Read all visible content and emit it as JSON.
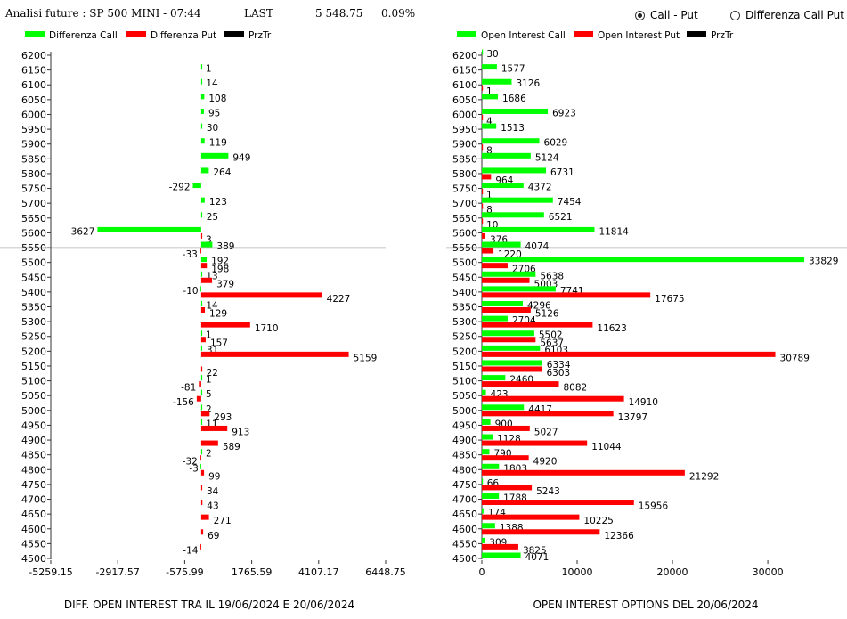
{
  "header": {
    "title": "Analisi future : SP 500 MINI - 07:44",
    "last_label": "LAST",
    "last_value": "5 548.75",
    "pct_value": "0.09%",
    "radio_options": [
      {
        "label": "Call - Put",
        "selected": true
      },
      {
        "label": "Differenza Call Put",
        "selected": false
      }
    ]
  },
  "colors": {
    "call": "#00ff00",
    "put": "#ff0000",
    "price": "#000000"
  },
  "chart_data": [
    {
      "type": "bar",
      "orientation": "horizontal",
      "title": "",
      "caption": "DIFF. OPEN INTEREST TRA IL 19/06/2024 E 20/06/2024",
      "legend": [
        "Differenza Call",
        "Differenza Put",
        "PrzTr"
      ],
      "legend_position": "top",
      "categories": [
        6200,
        6150,
        6100,
        6050,
        6000,
        5950,
        5900,
        5850,
        5800,
        5750,
        5700,
        5650,
        5600,
        5550,
        5500,
        5450,
        5400,
        5350,
        5300,
        5250,
        5200,
        5150,
        5100,
        5050,
        5000,
        4950,
        4900,
        4850,
        4800,
        4750,
        4700,
        4650,
        4600,
        4550,
        4500
      ],
      "series": [
        {
          "name": "Differenza Call",
          "values": [
            null,
            1,
            14,
            108,
            95,
            30,
            119,
            949,
            264,
            -292,
            123,
            25,
            -3627,
            389,
            192,
            13,
            -10,
            14,
            null,
            1,
            31,
            null,
            1,
            5,
            2,
            11,
            null,
            2,
            -3,
            null,
            null,
            null,
            null,
            null,
            null
          ]
        },
        {
          "name": "Differenza Put",
          "values": [
            null,
            null,
            null,
            null,
            null,
            null,
            null,
            null,
            null,
            null,
            null,
            null,
            3,
            -33,
            198,
            379,
            4227,
            129,
            1710,
            157,
            5159,
            22,
            -81,
            -156,
            293,
            913,
            589,
            -32,
            99,
            34,
            43,
            271,
            69,
            -14,
            null
          ]
        }
      ],
      "price_level": 5548.75,
      "x_ticks": [
        "-5259.15",
        "-2917.57",
        "-575.99",
        "1765.59",
        "4107.17",
        "6448.75"
      ],
      "xlim": [
        -5259.15,
        6448.75
      ],
      "grid": false
    },
    {
      "type": "bar",
      "orientation": "horizontal",
      "title": "",
      "caption": "OPEN INTEREST OPTIONS DEL 20/06/2024",
      "legend": [
        "Open Interest Call",
        "Open Interest Put",
        "PrzTr"
      ],
      "legend_position": "top",
      "categories": [
        6200,
        6150,
        6100,
        6050,
        6000,
        5950,
        5900,
        5850,
        5800,
        5750,
        5700,
        5650,
        5600,
        5550,
        5500,
        5450,
        5400,
        5350,
        5300,
        5250,
        5200,
        5150,
        5100,
        5050,
        5000,
        4950,
        4900,
        4850,
        4800,
        4750,
        4700,
        4650,
        4600,
        4550,
        4500
      ],
      "series": [
        {
          "name": "Open Interest Call",
          "values": [
            30,
            1577,
            3126,
            1686,
            6923,
            1513,
            6029,
            5124,
            6731,
            4372,
            7454,
            6521,
            11814,
            4074,
            33829,
            5638,
            7741,
            4296,
            2704,
            5502,
            6103,
            6334,
            2460,
            423,
            4417,
            900,
            1128,
            790,
            1803,
            66,
            1788,
            174,
            1388,
            309,
            4071
          ]
        },
        {
          "name": "Open Interest Put",
          "values": [
            null,
            null,
            1,
            null,
            4,
            null,
            8,
            null,
            964,
            1,
            8,
            10,
            376,
            1220,
            2706,
            5003,
            17675,
            5126,
            11623,
            5637,
            30789,
            6303,
            8082,
            14910,
            13797,
            5027,
            11044,
            4920,
            21292,
            5243,
            15956,
            10225,
            12366,
            3825,
            null
          ]
        }
      ],
      "price_level": 5548.75,
      "x_ticks": [
        "0",
        "10000",
        "20000",
        "30000"
      ],
      "xlim": [
        0,
        37000
      ],
      "grid": false
    }
  ]
}
